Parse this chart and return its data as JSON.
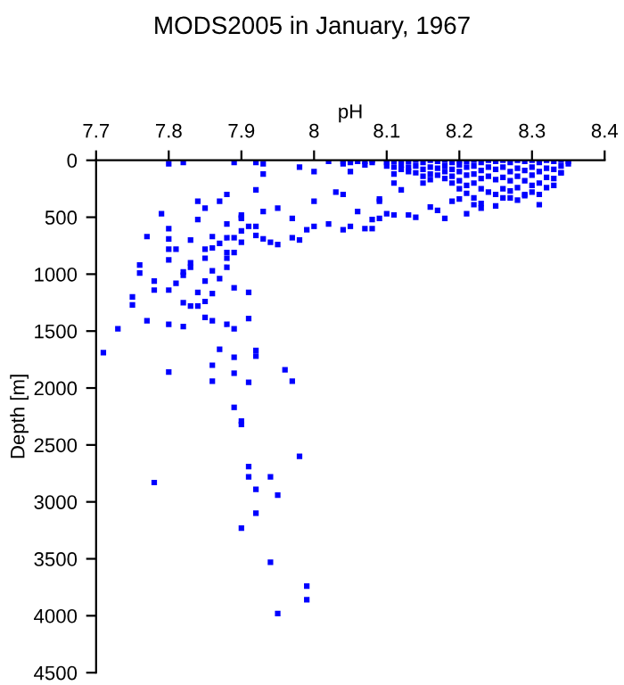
{
  "chart_data": {
    "type": "scatter",
    "title": "MODS2005 in January, 1967",
    "xlabel": "pH",
    "ylabel": "Depth [m]",
    "xlim": [
      7.7,
      8.4
    ],
    "ylim": [
      4500,
      0
    ],
    "xticks": [
      7.7,
      7.8,
      7.9,
      8,
      8.1,
      8.2,
      8.3,
      8.4
    ],
    "yticks": [
      0,
      500,
      1000,
      1500,
      2000,
      2500,
      3000,
      3500,
      4000,
      4500
    ],
    "grid": false,
    "marker": "square",
    "legend": false,
    "series": [
      {
        "color": "#0000ff",
        "x": [
          7.9,
          7.9,
          7.98,
          7.78,
          7.91,
          7.91,
          7.94,
          7.92,
          7.95,
          7.92,
          7.9,
          7.94,
          7.99,
          7.99,
          7.95,
          7.71,
          7.73,
          7.75,
          7.75,
          7.77,
          7.8,
          7.8,
          7.82,
          7.86,
          7.86,
          7.87,
          7.89,
          7.89,
          7.89,
          7.91,
          7.96,
          7.97,
          7.92,
          7.92,
          7.91,
          7.89,
          7.91,
          7.88,
          7.89,
          7.85,
          7.86,
          7.8,
          7.78,
          7.76,
          7.76,
          7.77,
          7.78,
          7.81,
          7.82,
          7.82,
          7.83,
          7.84,
          7.84,
          7.85,
          7.86,
          7.87,
          7.85,
          7.88,
          7.88,
          7.89,
          7.86,
          7.85,
          7.83,
          7.83,
          7.82,
          7.8,
          7.8,
          7.8,
          7.8,
          7.79,
          7.81,
          7.83,
          7.84,
          7.84,
          7.85,
          7.86,
          7.86,
          7.85,
          7.87,
          7.87,
          7.88,
          7.88,
          7.88,
          7.89,
          7.9,
          7.9,
          7.9,
          7.91,
          7.92,
          7.92,
          7.93,
          7.93,
          7.94,
          7.95,
          7.95,
          7.97,
          7.97,
          7.98,
          7.99,
          8.0,
          8.0,
          8.02,
          8.04,
          8.05,
          8.06,
          8.07,
          8.08,
          8.09,
          8.1,
          8.08,
          7.8,
          7.82,
          7.89,
          7.92,
          7.93,
          7.93,
          7.92,
          7.9,
          7.9,
          7.88,
          8.0,
          7.98,
          8.03,
          8.04,
          8.05,
          8.09,
          8.11,
          8.12,
          8.15,
          8.16,
          8.17,
          8.18,
          8.19,
          8.2,
          8.21,
          8.22,
          8.23,
          8.14,
          8.13,
          8.11,
          8.09,
          8.27,
          8.29,
          8.31,
          8.33,
          8.34,
          8.35,
          8.02,
          8.04,
          8.04,
          8.05,
          8.05,
          8.06,
          8.07,
          8.07,
          8.08,
          8.08,
          8.1,
          8.1,
          8.1,
          8.11,
          8.11,
          8.11,
          8.12,
          8.12,
          8.12,
          8.13,
          8.13,
          8.13,
          8.14,
          8.14,
          8.14,
          8.15,
          8.15,
          8.15,
          8.16,
          8.16,
          8.16,
          8.16,
          8.17,
          8.17,
          8.17,
          8.18,
          8.18,
          8.18,
          8.18,
          8.19,
          8.19,
          8.19,
          8.19,
          8.2,
          8.2,
          8.2,
          8.2,
          8.2,
          8.21,
          8.21,
          8.21,
          8.21,
          8.21,
          8.22,
          8.22,
          8.22,
          8.22,
          8.22,
          8.23,
          8.23,
          8.23,
          8.23,
          8.23,
          8.24,
          8.24,
          8.24,
          8.24,
          8.25,
          8.25,
          8.25,
          8.25,
          8.25,
          8.26,
          8.26,
          8.26,
          8.26,
          8.26,
          8.27,
          8.27,
          8.27,
          8.27,
          8.28,
          8.28,
          8.28,
          8.28,
          8.28,
          8.29,
          8.29,
          8.29,
          8.29,
          8.3,
          8.3,
          8.3,
          8.3,
          8.3,
          8.31,
          8.31,
          8.31,
          8.31,
          8.32,
          8.32,
          8.32,
          8.32,
          8.33,
          8.33,
          8.33,
          8.34,
          8.34,
          8.34,
          8.35
        ],
        "values": [
          2290,
          2320,
          2600,
          2830,
          2690,
          2780,
          2780,
          2890,
          2940,
          3100,
          3230,
          3530,
          3740,
          3860,
          3980,
          1690,
          1480,
          1200,
          1270,
          1410,
          1860,
          1440,
          1460,
          1800,
          1940,
          1660,
          1870,
          1730,
          2170,
          1950,
          1840,
          1940,
          1670,
          1720,
          1390,
          1120,
          1160,
          1440,
          1480,
          1380,
          1410,
          1140,
          1140,
          990,
          920,
          670,
          1060,
          1080,
          1010,
          1250,
          1280,
          1280,
          1160,
          1240,
          1170,
          1040,
          1060,
          940,
          860,
          810,
          970,
          860,
          900,
          940,
          980,
          875,
          780,
          690,
          600,
          470,
          780,
          700,
          520,
          360,
          420,
          670,
          770,
          780,
          730,
          360,
          560,
          680,
          810,
          680,
          500,
          620,
          720,
          580,
          580,
          660,
          450,
          690,
          720,
          420,
          740,
          510,
          680,
          700,
          610,
          360,
          580,
          560,
          610,
          580,
          450,
          600,
          520,
          360,
          470,
          600,
          30,
          20,
          20,
          20,
          30,
          120,
          260,
          480,
          510,
          300,
          100,
          60,
          280,
          300,
          100,
          340,
          200,
          260,
          200,
          410,
          440,
          510,
          360,
          340,
          470,
          390,
          420,
          500,
          480,
          480,
          510,
          330,
          310,
          390,
          220,
          110,
          30,
          10,
          10,
          30,
          0,
          20,
          10,
          10,
          40,
          0,
          20,
          0,
          20,
          50,
          10,
          60,
          120,
          0,
          40,
          80,
          10,
          60,
          100,
          0,
          50,
          110,
          20,
          80,
          140,
          0,
          60,
          120,
          170,
          10,
          70,
          130,
          0,
          50,
          100,
          160,
          20,
          80,
          140,
          200,
          0,
          40,
          100,
          180,
          250,
          10,
          60,
          130,
          220,
          290,
          0,
          50,
          120,
          200,
          330,
          20,
          90,
          160,
          250,
          380,
          0,
          60,
          140,
          280,
          10,
          80,
          170,
          300,
          400,
          0,
          60,
          150,
          250,
          330,
          20,
          100,
          180,
          270,
          0,
          70,
          140,
          240,
          350,
          10,
          90,
          180,
          300,
          0,
          60,
          130,
          220,
          280,
          20,
          100,
          200,
          300,
          0,
          70,
          150,
          240,
          10,
          80,
          160,
          0,
          50,
          110,
          10
        ]
      }
    ]
  }
}
